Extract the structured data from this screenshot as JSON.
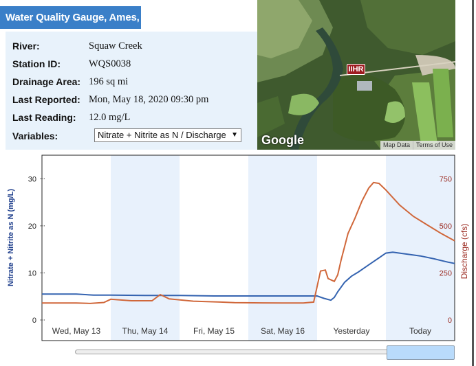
{
  "header": {
    "title": "Water Quality Gauge, Ames, IA"
  },
  "info": {
    "river": {
      "label": "River:",
      "value": "Squaw Creek"
    },
    "station": {
      "label": "Station ID:",
      "value": "WQS0038"
    },
    "drainage": {
      "label": "Drainage Area:",
      "value": "196 sq mi"
    },
    "last_reported": {
      "label": "Last Reported:",
      "value": "Mon, May 18, 2020 09:30 pm"
    },
    "last_reading": {
      "label": "Last Reading:",
      "value": "12.0 mg/L"
    },
    "variables": {
      "label": "Variables:",
      "selected": "Nitrate + Nitrite as N / Discharge",
      "arrow": "▼"
    }
  },
  "map": {
    "badge": "IIHR",
    "logo": "Google",
    "links": [
      "Map Data",
      "Terms of Use"
    ]
  },
  "colors": {
    "nitrate": "#3463b0",
    "discharge": "#d0673a",
    "discharge_axis": "#9b2a20",
    "shade": "#e8f1fc",
    "title_bg": "#3a7fc8"
  },
  "chart_data": {
    "type": "line",
    "title": "",
    "x_labels": [
      "Wed, May 13",
      "Thu, May 14",
      "Fri, May 15",
      "Sat, May 16",
      "Yesterday",
      "Today"
    ],
    "x_range_days": [
      0,
      6
    ],
    "shaded_days": [
      1,
      3,
      5
    ],
    "y_left": {
      "label": "Nitrate + Nitrite as N (mg/L)",
      "ticks": [
        0,
        10,
        20,
        30
      ],
      "range": [
        0,
        35
      ]
    },
    "y_right": {
      "label": "Discharge (cfs)",
      "ticks": [
        0,
        250,
        500,
        750
      ],
      "range": [
        0,
        875
      ]
    },
    "series": [
      {
        "axis": "left",
        "points": [
          [
            0,
            5.5
          ],
          [
            0.5,
            5.5
          ],
          [
            0.75,
            5.3
          ],
          [
            1,
            5.3
          ],
          [
            1.5,
            5.2
          ],
          [
            2,
            5.2
          ],
          [
            2.5,
            5.1
          ],
          [
            3,
            5.1
          ],
          [
            3.5,
            5.1
          ],
          [
            4,
            5.1
          ],
          [
            4.1,
            4.6
          ],
          [
            4.2,
            4.2
          ],
          [
            4.25,
            4.8
          ],
          [
            4.3,
            6.0
          ],
          [
            4.4,
            8.0
          ],
          [
            4.5,
            9.3
          ],
          [
            4.6,
            10.2
          ],
          [
            4.7,
            11.2
          ],
          [
            4.8,
            12.2
          ],
          [
            4.9,
            13.2
          ],
          [
            5.0,
            14.2
          ],
          [
            5.1,
            14.4
          ],
          [
            5.3,
            14.0
          ],
          [
            5.5,
            13.6
          ],
          [
            5.7,
            13.0
          ],
          [
            5.9,
            12.3
          ],
          [
            6.0,
            12.0
          ]
        ]
      },
      {
        "axis": "right",
        "points": [
          [
            0,
            90
          ],
          [
            0.5,
            90
          ],
          [
            0.7,
            88
          ],
          [
            0.9,
            93
          ],
          [
            1.0,
            110
          ],
          [
            1.3,
            102
          ],
          [
            1.6,
            102
          ],
          [
            1.72,
            135
          ],
          [
            1.85,
            112
          ],
          [
            2.2,
            100
          ],
          [
            2.6,
            95
          ],
          [
            2.8,
            92
          ],
          [
            3.5,
            90
          ],
          [
            3.8,
            90
          ],
          [
            3.95,
            95
          ],
          [
            4.05,
            260
          ],
          [
            4.12,
            265
          ],
          [
            4.16,
            220
          ],
          [
            4.25,
            205
          ],
          [
            4.3,
            240
          ],
          [
            4.35,
            320
          ],
          [
            4.45,
            460
          ],
          [
            4.55,
            540
          ],
          [
            4.65,
            630
          ],
          [
            4.75,
            700
          ],
          [
            4.82,
            730
          ],
          [
            4.9,
            725
          ],
          [
            5.0,
            690
          ],
          [
            5.2,
            610
          ],
          [
            5.4,
            550
          ],
          [
            5.6,
            505
          ],
          [
            5.8,
            460
          ],
          [
            6.0,
            420
          ]
        ]
      }
    ]
  }
}
